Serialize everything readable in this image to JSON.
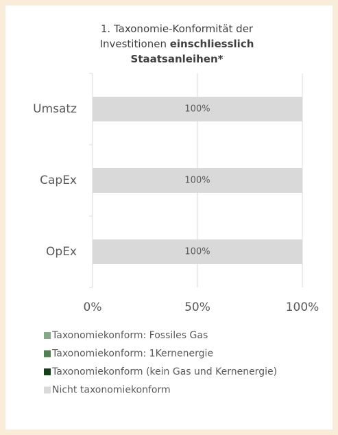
{
  "chart_data": {
    "type": "stacked_barh",
    "title": "1. Taxonomie-Konformität der Investitionen",
    "title_bold": "einschliesslich Staatsanleihen*",
    "categories": [
      "Umsatz",
      "CapEx",
      "OpEx"
    ],
    "series": [
      {
        "name": "Taxonomiekonform: Fossiles Gas",
        "color": "#86a788",
        "values": [
          0,
          0,
          0
        ]
      },
      {
        "name": "Taxonomiekonform: 1Kernenergie",
        "color": "#4f7f53",
        "values": [
          0,
          0,
          0
        ]
      },
      {
        "name": "Taxonomiekonform (kein Gas und Kernenergie)",
        "color": "#143f17",
        "values": [
          0,
          0,
          0
        ]
      },
      {
        "name": "Nicht taxonomiekonform",
        "color": "#d9d9d9",
        "values": [
          100,
          100,
          100
        ],
        "value_labels": [
          "100%",
          "100%",
          "100%"
        ]
      }
    ],
    "xlim": [
      0,
      100
    ],
    "xticks": [
      {
        "value": 0,
        "label": "0%"
      },
      {
        "value": 50,
        "label": "50%"
      },
      {
        "value": 100,
        "label": "100%"
      }
    ],
    "grid": true,
    "legend": "bottom-left"
  }
}
